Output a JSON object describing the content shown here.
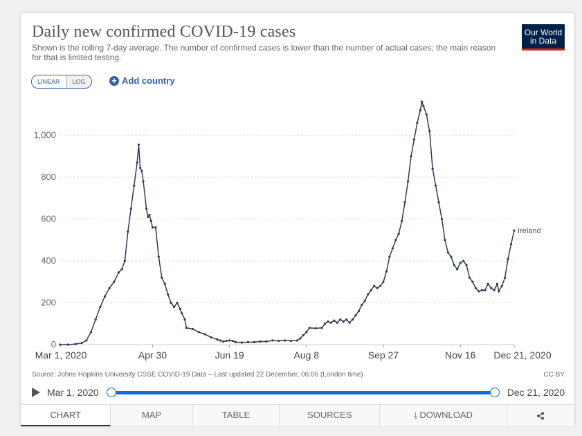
{
  "header": {
    "title": "Daily new confirmed COVID-19 cases",
    "subtitle": "Shown is the rolling 7-day average. The number of confirmed cases is lower than the number of actual cases; the main reason for that is limited testing.",
    "logo_line1": "Our World",
    "logo_line2": "in Data"
  },
  "controls": {
    "linear_label": "LINEAR",
    "log_label": "LOG",
    "add_country_label": "Add country"
  },
  "chart_data": {
    "type": "line",
    "title": "Daily new confirmed COVID-19 cases",
    "xlabel": "",
    "ylabel": "",
    "ylim": [
      0,
      1200
    ],
    "x_ticks": [
      "Mar 1, 2020",
      "Apr 30",
      "Jun 19",
      "Aug 8",
      "Sep 27",
      "Nov 16",
      "Dec 21, 2020"
    ],
    "y_ticks": [
      "0",
      "200",
      "400",
      "600",
      "800",
      "1,000"
    ],
    "y_tick_values": [
      0,
      200,
      400,
      600,
      800,
      1000
    ],
    "grid": "horizontal dashed",
    "series": [
      {
        "name": "Ireland",
        "color": "#2f3b52",
        "points": [
          [
            0,
            0
          ],
          [
            5,
            0
          ],
          [
            10,
            3
          ],
          [
            14,
            8
          ],
          [
            17,
            20
          ],
          [
            20,
            60
          ],
          [
            23,
            120
          ],
          [
            26,
            180
          ],
          [
            29,
            230
          ],
          [
            32,
            270
          ],
          [
            35,
            300
          ],
          [
            38,
            345
          ],
          [
            40,
            360
          ],
          [
            42,
            400
          ],
          [
            44,
            540
          ],
          [
            46,
            650
          ],
          [
            48,
            760
          ],
          [
            50,
            870
          ],
          [
            51,
            955
          ],
          [
            52,
            845
          ],
          [
            53,
            830
          ],
          [
            54,
            780
          ],
          [
            56,
            650
          ],
          [
            57,
            610
          ],
          [
            58,
            620
          ],
          [
            59,
            590
          ],
          [
            60,
            560
          ],
          [
            62,
            560
          ],
          [
            64,
            420
          ],
          [
            66,
            320
          ],
          [
            68,
            290
          ],
          [
            70,
            240
          ],
          [
            72,
            200
          ],
          [
            74,
            180
          ],
          [
            76,
            200
          ],
          [
            78,
            170
          ],
          [
            79,
            150
          ],
          [
            81,
            120
          ],
          [
            82,
            80
          ],
          [
            86,
            75
          ],
          [
            90,
            60
          ],
          [
            94,
            50
          ],
          [
            98,
            35
          ],
          [
            102,
            25
          ],
          [
            104,
            20
          ],
          [
            106,
            15
          ],
          [
            108,
            18
          ],
          [
            110,
            20
          ],
          [
            112,
            18
          ],
          [
            114,
            12
          ],
          [
            118,
            10
          ],
          [
            122,
            12
          ],
          [
            126,
            12
          ],
          [
            130,
            15
          ],
          [
            134,
            15
          ],
          [
            138,
            20
          ],
          [
            142,
            18
          ],
          [
            146,
            20
          ],
          [
            150,
            18
          ],
          [
            154,
            20
          ],
          [
            156,
            30
          ],
          [
            158,
            45
          ],
          [
            160,
            60
          ],
          [
            162,
            80
          ],
          [
            166,
            78
          ],
          [
            170,
            80
          ],
          [
            172,
            100
          ],
          [
            174,
            110
          ],
          [
            176,
            105
          ],
          [
            178,
            115
          ],
          [
            180,
            105
          ],
          [
            182,
            120
          ],
          [
            184,
            110
          ],
          [
            186,
            120
          ],
          [
            188,
            105
          ],
          [
            190,
            120
          ],
          [
            192,
            140
          ],
          [
            194,
            160
          ],
          [
            196,
            190
          ],
          [
            198,
            210
          ],
          [
            200,
            240
          ],
          [
            202,
            260
          ],
          [
            204,
            280
          ],
          [
            206,
            270
          ],
          [
            208,
            280
          ],
          [
            210,
            300
          ],
          [
            212,
            350
          ],
          [
            214,
            420
          ],
          [
            216,
            460
          ],
          [
            218,
            500
          ],
          [
            220,
            530
          ],
          [
            222,
            590
          ],
          [
            224,
            680
          ],
          [
            226,
            780
          ],
          [
            228,
            900
          ],
          [
            230,
            980
          ],
          [
            232,
            1060
          ],
          [
            234,
            1120
          ],
          [
            235,
            1160
          ],
          [
            236,
            1140
          ],
          [
            238,
            1100
          ],
          [
            240,
            1020
          ],
          [
            242,
            840
          ],
          [
            244,
            760
          ],
          [
            246,
            680
          ],
          [
            248,
            600
          ],
          [
            250,
            500
          ],
          [
            252,
            440
          ],
          [
            254,
            420
          ],
          [
            256,
            380
          ],
          [
            258,
            360
          ],
          [
            260,
            390
          ],
          [
            262,
            400
          ],
          [
            264,
            380
          ],
          [
            266,
            320
          ],
          [
            268,
            300
          ],
          [
            270,
            270
          ],
          [
            272,
            255
          ],
          [
            274,
            260
          ],
          [
            276,
            260
          ],
          [
            278,
            290
          ],
          [
            280,
            270
          ],
          [
            282,
            260
          ],
          [
            284,
            290
          ],
          [
            285,
            255
          ],
          [
            287,
            280
          ],
          [
            289,
            320
          ],
          [
            291,
            410
          ],
          [
            293,
            480
          ],
          [
            295,
            545
          ]
        ]
      }
    ]
  },
  "footer": {
    "source": "Source: Johns Hopkins University CSSE COVID-19 Data – Last updated 22 December, 06:06 (London time)",
    "license": "CC BY",
    "timeline_start": "Mar 1, 2020",
    "timeline_end": "Dec 21, 2020"
  },
  "tabs": {
    "chart": "CHART",
    "map": "MAP",
    "table": "TABLE",
    "sources": "SOURCES",
    "download": "DOWNLOAD"
  },
  "icons": {
    "download": "download-icon",
    "share": "share-icon",
    "play": "play-icon",
    "add": "plus-circle-icon"
  }
}
